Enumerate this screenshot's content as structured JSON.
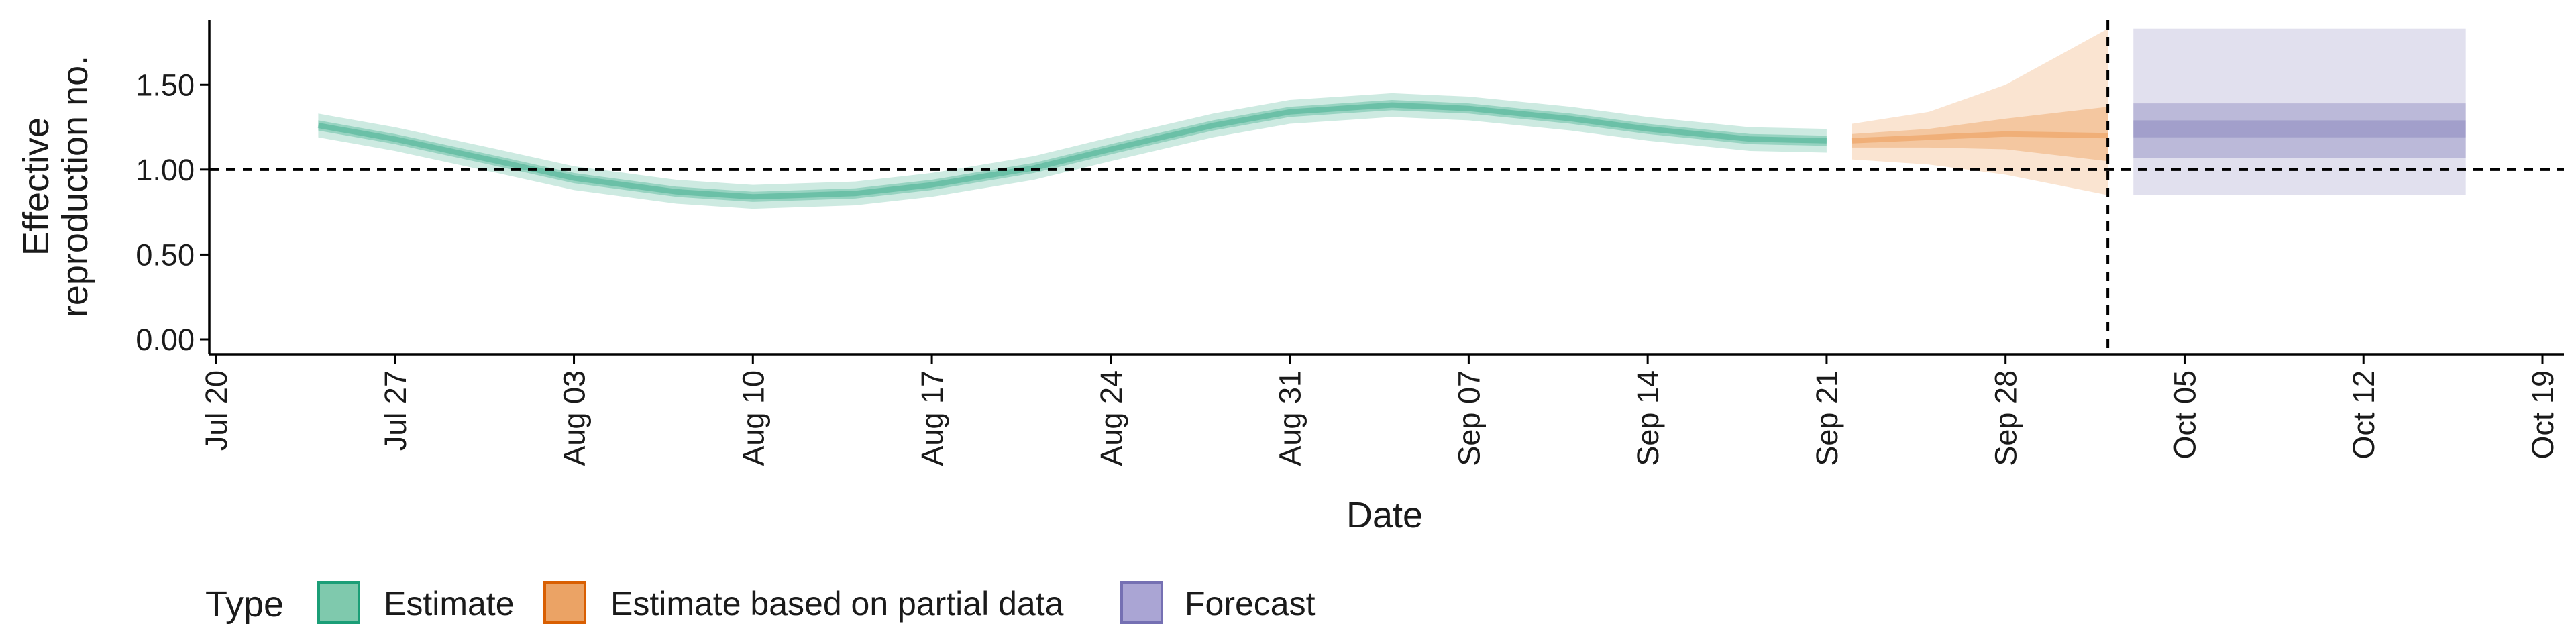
{
  "chart_data": {
    "type": "area",
    "xlabel": "Date",
    "ylabel_lines": [
      "Effective",
      "reproduction no."
    ],
    "x_range": [
      "2020-07-20",
      "2020-10-19"
    ],
    "x_ticks": [
      {
        "date": "2020-07-20",
        "label": "Jul 20"
      },
      {
        "date": "2020-07-27",
        "label": "Jul 27"
      },
      {
        "date": "2020-08-03",
        "label": "Aug 03"
      },
      {
        "date": "2020-08-10",
        "label": "Aug 10"
      },
      {
        "date": "2020-08-17",
        "label": "Aug 17"
      },
      {
        "date": "2020-08-24",
        "label": "Aug 24"
      },
      {
        "date": "2020-08-31",
        "label": "Aug 31"
      },
      {
        "date": "2020-09-07",
        "label": "Sep 07"
      },
      {
        "date": "2020-09-14",
        "label": "Sep 14"
      },
      {
        "date": "2020-09-21",
        "label": "Sep 21"
      },
      {
        "date": "2020-09-28",
        "label": "Sep 28"
      },
      {
        "date": "2020-10-05",
        "label": "Oct 05"
      },
      {
        "date": "2020-10-12",
        "label": "Oct 12"
      },
      {
        "date": "2020-10-19",
        "label": "Oct 19"
      }
    ],
    "y_range": [
      0,
      1.9
    ],
    "y_ticks": [
      {
        "value": 0,
        "label": "0.00"
      },
      {
        "value": 0.5,
        "label": "0.50"
      },
      {
        "value": 1.0,
        "label": "1.00"
      },
      {
        "value": 1.5,
        "label": "1.50"
      }
    ],
    "reference_hline": 1.0,
    "reference_vline_date": "2020-10-02",
    "legend": {
      "title": "Type",
      "position": "bottom-left",
      "entries": [
        {
          "label": "Estimate",
          "fill": "#7fc9ad",
          "stroke": "#1b9e77"
        },
        {
          "label": "Estimate based on partial data",
          "fill": "#eba365",
          "stroke": "#d95f02"
        },
        {
          "label": "Forecast",
          "fill": "#aaa5d4",
          "stroke": "#7570b3"
        }
      ]
    },
    "series": [
      {
        "name": "Estimate",
        "color": "#1b9e77",
        "points": [
          {
            "date": "2020-07-24",
            "median": 1.26,
            "lower50": 1.23,
            "upper50": 1.29,
            "lower90": 1.19,
            "upper90": 1.33
          },
          {
            "date": "2020-07-27",
            "median": 1.18,
            "lower50": 1.15,
            "upper50": 1.21,
            "lower90": 1.11,
            "upper90": 1.25
          },
          {
            "date": "2020-07-31",
            "median": 1.05,
            "lower50": 1.02,
            "upper50": 1.08,
            "lower90": 0.98,
            "upper90": 1.12
          },
          {
            "date": "2020-08-03",
            "median": 0.95,
            "lower50": 0.92,
            "upper50": 0.98,
            "lower90": 0.88,
            "upper90": 1.02
          },
          {
            "date": "2020-08-07",
            "median": 0.87,
            "lower50": 0.84,
            "upper50": 0.9,
            "lower90": 0.8,
            "upper90": 0.94
          },
          {
            "date": "2020-08-10",
            "median": 0.84,
            "lower50": 0.81,
            "upper50": 0.87,
            "lower90": 0.77,
            "upper90": 0.91
          },
          {
            "date": "2020-08-14",
            "median": 0.86,
            "lower50": 0.83,
            "upper50": 0.89,
            "lower90": 0.79,
            "upper90": 0.93
          },
          {
            "date": "2020-08-17",
            "median": 0.91,
            "lower50": 0.88,
            "upper50": 0.94,
            "lower90": 0.84,
            "upper90": 0.98
          },
          {
            "date": "2020-08-21",
            "median": 1.01,
            "lower50": 0.98,
            "upper50": 1.04,
            "lower90": 0.94,
            "upper90": 1.08
          },
          {
            "date": "2020-08-24",
            "median": 1.12,
            "lower50": 1.09,
            "upper50": 1.15,
            "lower90": 1.05,
            "upper90": 1.19
          },
          {
            "date": "2020-08-28",
            "median": 1.26,
            "lower50": 1.23,
            "upper50": 1.29,
            "lower90": 1.19,
            "upper90": 1.33
          },
          {
            "date": "2020-08-31",
            "median": 1.34,
            "lower50": 1.31,
            "upper50": 1.37,
            "lower90": 1.27,
            "upper90": 1.41
          },
          {
            "date": "2020-09-04",
            "median": 1.38,
            "lower50": 1.35,
            "upper50": 1.41,
            "lower90": 1.31,
            "upper90": 1.45
          },
          {
            "date": "2020-09-07",
            "median": 1.36,
            "lower50": 1.33,
            "upper50": 1.39,
            "lower90": 1.29,
            "upper90": 1.43
          },
          {
            "date": "2020-09-11",
            "median": 1.3,
            "lower50": 1.27,
            "upper50": 1.33,
            "lower90": 1.23,
            "upper90": 1.37
          },
          {
            "date": "2020-09-14",
            "median": 1.24,
            "lower50": 1.21,
            "upper50": 1.27,
            "lower90": 1.17,
            "upper90": 1.31
          },
          {
            "date": "2020-09-18",
            "median": 1.18,
            "lower50": 1.15,
            "upper50": 1.21,
            "lower90": 1.11,
            "upper90": 1.25
          },
          {
            "date": "2020-09-21",
            "median": 1.17,
            "lower50": 1.14,
            "upper50": 1.2,
            "lower90": 1.1,
            "upper90": 1.24
          }
        ]
      },
      {
        "name": "Estimate based on partial data",
        "color": "#d95f02",
        "points": [
          {
            "date": "2020-09-22",
            "median": 1.17,
            "lower50": 1.13,
            "upper50": 1.21,
            "lower90": 1.06,
            "upper90": 1.27
          },
          {
            "date": "2020-09-25",
            "median": 1.19,
            "lower50": 1.13,
            "upper50": 1.24,
            "lower90": 1.03,
            "upper90": 1.34
          },
          {
            "date": "2020-09-28",
            "median": 1.21,
            "lower50": 1.12,
            "upper50": 1.3,
            "lower90": 0.97,
            "upper90": 1.5
          },
          {
            "date": "2020-10-02",
            "median": 1.2,
            "lower50": 1.05,
            "upper50": 1.37,
            "lower90": 0.85,
            "upper90": 1.83
          }
        ]
      },
      {
        "name": "Forecast",
        "color": "#7570b3",
        "points": [
          {
            "date": "2020-10-03",
            "median": 1.24,
            "lower50": 1.07,
            "upper50": 1.39,
            "lower90": 0.85,
            "upper90": 1.83
          },
          {
            "date": "2020-10-16",
            "median": 1.24,
            "lower50": 1.07,
            "upper50": 1.39,
            "lower90": 0.85,
            "upper90": 1.83
          }
        ]
      }
    ]
  }
}
